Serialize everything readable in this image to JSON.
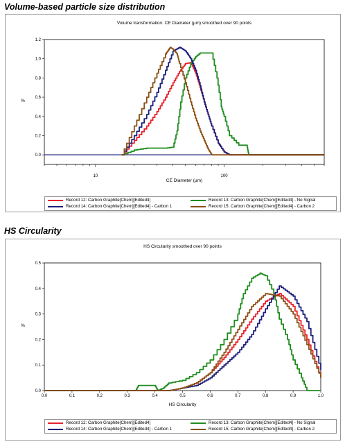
{
  "sections": {
    "top_title": "Volume-based particle size distribution",
    "bottom_title": "HS Circularity"
  },
  "colors": {
    "red": "#e8202a",
    "navy": "#1c1f7a",
    "green": "#1e8c1e",
    "brown": "#8a4f14"
  },
  "legend_labels": [
    "Record 12: Carbon Graphite[Chem][Edited4]",
    "Record 13: Carbon Graphite[Chem][Edited4] - No Signal",
    "Record 14: Carbon Graphite[Chem][Edited4] - Carbon 1",
    "Record 15: Carbon Graphite[Chem][Edited4] - Carbon 2"
  ],
  "chart_data": [
    {
      "type": "line",
      "title": "Volume transformation: CE Diameter (µm) smoothed over 90 points",
      "xlabel": "CE Diameter (µm)",
      "ylabel": "%",
      "xscale": "log",
      "xlim": [
        4,
        600
      ],
      "ylim": [
        -0.1,
        1.2
      ],
      "xticks": [
        10,
        100
      ],
      "yticks": [
        "0.0",
        "0.2",
        "0.4",
        "0.6",
        "0.8",
        "1.0",
        "1.2"
      ],
      "legend_position": "bottom",
      "series": [
        {
          "name": "Record 12: Carbon Graphite[Chem][Edited4]",
          "color": "#e8202a",
          "x": [
            16,
            20,
            25,
            30,
            35,
            40,
            45,
            50,
            55,
            60,
            65,
            70,
            75,
            80,
            90,
            100,
            110,
            600
          ],
          "y": [
            0,
            0.15,
            0.3,
            0.45,
            0.6,
            0.75,
            0.87,
            0.95,
            0.96,
            0.85,
            0.7,
            0.55,
            0.42,
            0.3,
            0.12,
            0.03,
            0,
            0
          ]
        },
        {
          "name": "Record 13: Carbon Graphite[Chem][Edited4] - No Signal",
          "color": "#1e8c1e",
          "x": [
            16,
            20,
            25,
            30,
            35,
            40,
            43,
            46,
            50,
            55,
            60,
            65,
            70,
            80,
            88,
            95,
            100,
            110,
            130,
            150,
            155,
            600
          ],
          "y": [
            0,
            0.05,
            0.07,
            0.07,
            0.07,
            0.08,
            0.25,
            0.55,
            0.8,
            0.95,
            1.02,
            1.06,
            1.06,
            1.06,
            0.8,
            0.5,
            0.4,
            0.2,
            0.1,
            0.1,
            0,
            0
          ]
        },
        {
          "name": "Record 14: Carbon Graphite[Chem][Edited4] - Carbon 1",
          "color": "#1c1f7a",
          "x": [
            16,
            20,
            25,
            30,
            35,
            40,
            45,
            50,
            55,
            60,
            65,
            70,
            75,
            80,
            90,
            100,
            110,
            600
          ],
          "y": [
            0,
            0.2,
            0.42,
            0.65,
            0.88,
            1.08,
            1.12,
            1.08,
            1.0,
            0.88,
            0.72,
            0.55,
            0.42,
            0.3,
            0.12,
            0.03,
            0,
            0
          ]
        },
        {
          "name": "Record 15: Carbon Graphite[Chem][Edited4] - Carbon 2",
          "color": "#8a4f14",
          "x": [
            16,
            20,
            25,
            30,
            35,
            38,
            40,
            43,
            45,
            50,
            55,
            60,
            65,
            70,
            75,
            80,
            600
          ],
          "y": [
            0,
            0.3,
            0.6,
            0.85,
            1.05,
            1.12,
            1.1,
            1.05,
            0.95,
            0.75,
            0.55,
            0.38,
            0.25,
            0.15,
            0.06,
            0,
            0
          ]
        }
      ]
    },
    {
      "type": "line",
      "title": "HS Circularity smoothed over 90 points",
      "xlabel": "HS Circularity",
      "ylabel": "%",
      "xlim": [
        0,
        1
      ],
      "ylim": [
        0,
        0.5
      ],
      "xticks": [
        "0.0",
        "0.1",
        "0.2",
        "0.3",
        "0.4",
        "0.5",
        "0.6",
        "0.7",
        "0.8",
        "0.9",
        "1.0"
      ],
      "yticks": [
        "0.0",
        "0.1",
        "0.2",
        "0.3",
        "0.4",
        "0.5"
      ],
      "legend_position": "bottom",
      "series": [
        {
          "name": "Record 12: Carbon Graphite[Chem][Edited4]",
          "color": "#e8202a",
          "x": [
            0,
            0.45,
            0.5,
            0.55,
            0.6,
            0.65,
            0.7,
            0.75,
            0.8,
            0.85,
            0.9,
            0.95,
            1.0
          ],
          "y": [
            0,
            0,
            0.01,
            0.03,
            0.07,
            0.13,
            0.2,
            0.28,
            0.35,
            0.38,
            0.33,
            0.2,
            0.05
          ]
        },
        {
          "name": "Record 13: Carbon Graphite[Chem][Edited4] - No Signal",
          "color": "#1e8c1e",
          "x": [
            0,
            0.33,
            0.34,
            0.4,
            0.41,
            0.43,
            0.45,
            0.5,
            0.55,
            0.6,
            0.65,
            0.7,
            0.72,
            0.75,
            0.78,
            0.8,
            0.83,
            0.85,
            0.88,
            0.9,
            0.93,
            0.95,
            1.0
          ],
          "y": [
            0,
            0,
            0.02,
            0.02,
            0,
            0.01,
            0.03,
            0.04,
            0.07,
            0.12,
            0.2,
            0.3,
            0.38,
            0.44,
            0.46,
            0.45,
            0.38,
            0.28,
            0.2,
            0.12,
            0.05,
            0,
            0
          ]
        },
        {
          "name": "Record 14: Carbon Graphite[Chem][Edited4] - Carbon 1",
          "color": "#1c1f7a",
          "x": [
            0,
            0.45,
            0.5,
            0.55,
            0.6,
            0.65,
            0.7,
            0.75,
            0.8,
            0.85,
            0.9,
            0.95,
            1.0
          ],
          "y": [
            0,
            0,
            0.01,
            0.02,
            0.05,
            0.1,
            0.15,
            0.22,
            0.32,
            0.41,
            0.37,
            0.27,
            0.08
          ]
        },
        {
          "name": "Record 15: Carbon Graphite[Chem][Edited4] - Carbon 2",
          "color": "#8a4f14",
          "x": [
            0,
            0.45,
            0.5,
            0.55,
            0.6,
            0.65,
            0.7,
            0.75,
            0.8,
            0.85,
            0.9,
            0.95,
            1.0
          ],
          "y": [
            0,
            0,
            0.01,
            0.03,
            0.07,
            0.15,
            0.24,
            0.33,
            0.38,
            0.37,
            0.3,
            0.18,
            0.05
          ]
        }
      ]
    }
  ]
}
